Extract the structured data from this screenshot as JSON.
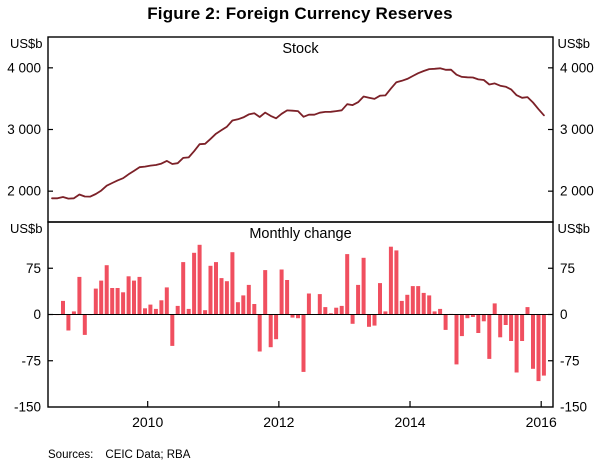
{
  "title": "Figure 2: Foreign Currency Reserves",
  "sources": {
    "label": "Sources:",
    "text": "CEIC Data; RBA"
  },
  "unit_label": "US$b",
  "colors": {
    "stock_line": "#7c2128",
    "change_bar": "#f04f5f",
    "axis": "#000000"
  },
  "x_axis": {
    "min": 2008.48,
    "max": 2016.18,
    "ticks": [
      2010,
      2012,
      2014,
      2016
    ],
    "labels": [
      "2010",
      "2012",
      "2014",
      "2016"
    ]
  },
  "chart_data": [
    {
      "type": "line",
      "title": "Stock",
      "ylabel": "US$b",
      "ylim": [
        1500,
        4500
      ],
      "yticks": [
        4000,
        3000,
        2000
      ],
      "ytick_labels": [
        "4 000",
        "3 000",
        "2 000"
      ],
      "color": "#7c2128",
      "x_start": 2008.5417,
      "x_step": 0.0833333,
      "values": [
        1885,
        1884,
        1906,
        1880,
        1885,
        1946,
        1913,
        1912,
        1954,
        2009,
        2089,
        2132,
        2175,
        2211,
        2273,
        2328,
        2389,
        2399,
        2415,
        2424,
        2447,
        2491,
        2440,
        2454,
        2539,
        2548,
        2648,
        2761,
        2768,
        2847,
        2932,
        2991,
        3045,
        3146,
        3166,
        3197,
        3245,
        3262,
        3202,
        3274,
        3221,
        3181,
        3254,
        3310,
        3305,
        3299,
        3206,
        3240,
        3240,
        3273,
        3285,
        3287,
        3298,
        3312,
        3410,
        3395,
        3443,
        3535,
        3515,
        3497,
        3548,
        3553,
        3663,
        3767,
        3789,
        3821,
        3867,
        3913,
        3948,
        3979,
        3984,
        3993,
        3968,
        3969,
        3888,
        3853,
        3847,
        3843,
        3813,
        3802,
        3730,
        3748,
        3711,
        3694,
        3651,
        3557,
        3514,
        3526,
        3438,
        3330,
        3231
      ]
    },
    {
      "type": "bar",
      "title": "Monthly change",
      "ylabel": "US$b",
      "ylim": [
        -150,
        150
      ],
      "yticks": [
        75,
        0,
        -75,
        -150
      ],
      "ytick_labels": [
        "75",
        "0",
        "-75",
        "-150"
      ],
      "color": "#f04f5f",
      "x_start": 2008.625,
      "x_step": 0.0833333,
      "values": [
        -1,
        22,
        -26,
        5,
        61,
        -33,
        -1,
        42,
        55,
        80,
        43,
        43,
        36,
        62,
        55,
        61,
        10,
        16,
        9,
        23,
        44,
        -51,
        14,
        85,
        9,
        100,
        113,
        7,
        79,
        85,
        59,
        54,
        101,
        20,
        31,
        48,
        17,
        -60,
        72,
        -53,
        -40,
        73,
        56,
        -5,
        -6,
        -93,
        34,
        0,
        33,
        12,
        2,
        11,
        14,
        98,
        -15,
        48,
        92,
        -20,
        -18,
        51,
        5,
        110,
        104,
        22,
        32,
        46,
        46,
        35,
        31,
        5,
        9,
        -25,
        1,
        -81,
        -35,
        -6,
        -4,
        -30,
        -11,
        -72,
        18,
        -37,
        -17,
        -43,
        -94,
        -43,
        12,
        -88,
        -108,
        -99
      ]
    }
  ]
}
